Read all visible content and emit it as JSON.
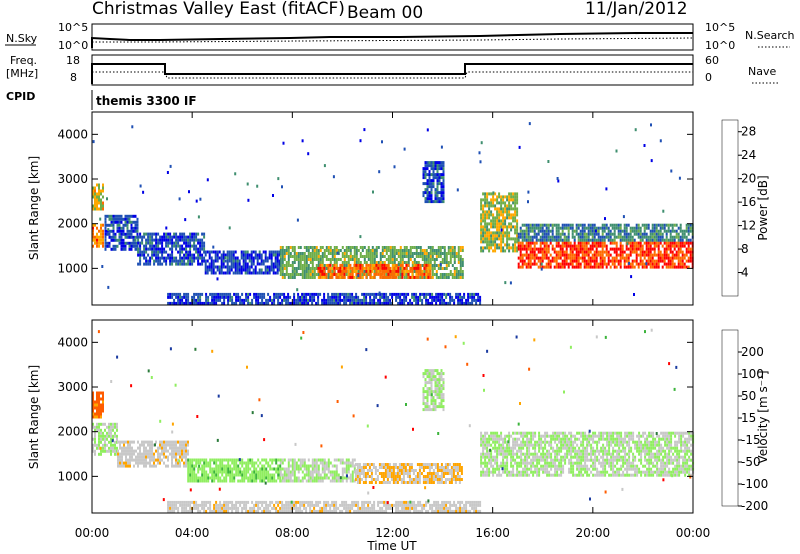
{
  "header": {
    "station": "Christmas Valley East (fitACF)",
    "beam": "Beam 00",
    "date": "11/Jan/2012"
  },
  "strips": {
    "nsky_label": "N.Sky",
    "nsky_ticks": [
      "10^5",
      "10^0"
    ],
    "nsearch_label": "N.Search",
    "nsearch_ticks": [
      "10^5",
      "10^0"
    ],
    "freq_label": "Freq.",
    "freq_unit": "[MHz]",
    "freq_ticks": [
      "18",
      "8"
    ],
    "nave_label": "Nave",
    "nave_ticks": [
      "60",
      "0"
    ],
    "cpid_label": "CPID",
    "cpid_value": "themis 3300 IF"
  },
  "chart_data": [
    {
      "type": "heatmap",
      "name": "power",
      "xlabel": "",
      "ylabel": "Slant Range [km]",
      "xlim": [
        0,
        24
      ],
      "ylim": [
        180,
        4500
      ],
      "y_ticks": [
        "1000",
        "2000",
        "3000",
        "4000"
      ],
      "colorbar": {
        "label": "Power [dB]",
        "ticks": [
          "4",
          "8",
          "12",
          "16",
          "20",
          "24",
          "28"
        ],
        "range": [
          0,
          30
        ],
        "colors": [
          "#0000e6",
          "#1f50b4",
          "#3f8f6f",
          "#6fae4a",
          "#ffa800",
          "#ff6a00",
          "#ff0000"
        ]
      },
      "echo_regions": [
        {
          "x": [
            0.0,
            0.4
          ],
          "y": [
            1500,
            2000
          ],
          "level": 22
        },
        {
          "x": [
            0.0,
            0.4
          ],
          "y": [
            2300,
            2900
          ],
          "level": 18
        },
        {
          "x": [
            0.5,
            1.8
          ],
          "y": [
            1400,
            2200
          ],
          "level": 6
        },
        {
          "x": [
            1.8,
            4.5
          ],
          "y": [
            1100,
            1800
          ],
          "level": 6
        },
        {
          "x": [
            4.5,
            7.5
          ],
          "y": [
            900,
            1400
          ],
          "level": 5
        },
        {
          "x": [
            7.5,
            14.8
          ],
          "y": [
            800,
            1500
          ],
          "level": 14
        },
        {
          "x": [
            9.0,
            13.5
          ],
          "y": [
            800,
            1100
          ],
          "level": 24
        },
        {
          "x": [
            13.2,
            14.0
          ],
          "y": [
            2500,
            3400
          ],
          "level": 6
        },
        {
          "x": [
            15.5,
            17.0
          ],
          "y": [
            1400,
            2700
          ],
          "level": 16
        },
        {
          "x": [
            17.0,
            24.0
          ],
          "y": [
            1000,
            1600
          ],
          "level": 26
        },
        {
          "x": [
            17.0,
            24.0
          ],
          "y": [
            1600,
            2000
          ],
          "level": 10
        },
        {
          "x": [
            3.0,
            15.5
          ],
          "y": [
            200,
            450
          ],
          "level": 5
        }
      ]
    },
    {
      "type": "heatmap",
      "name": "velocity",
      "xlabel": "Time UT",
      "ylabel": "Slant Range [km]",
      "xlim": [
        0,
        24
      ],
      "ylim": [
        180,
        4500
      ],
      "x_ticks": [
        "00:00",
        "04:00",
        "08:00",
        "12:00",
        "16:00",
        "20:00",
        "00:00"
      ],
      "y_ticks": [
        "1000",
        "2000",
        "3000",
        "4000"
      ],
      "colorbar": {
        "label": "Velocity [m s⁻¹]",
        "ticks": [
          "200",
          "100",
          "50",
          "15",
          "-15",
          "-50",
          "-100",
          "-200"
        ],
        "range": [
          -250,
          250
        ],
        "colors": [
          "#ff0000",
          "#ff5c00",
          "#ffa500",
          "#c8c8c8",
          "#90ee60",
          "#3cb43c",
          "#2a7a3a",
          "#1a3aa0"
        ]
      },
      "echo_regions": [
        {
          "x": [
            0.0,
            0.4
          ],
          "y": [
            2300,
            2900
          ],
          "level": -150
        },
        {
          "x": [
            0.0,
            1.0
          ],
          "y": [
            1500,
            2200
          ],
          "level": 0
        },
        {
          "x": [
            1.0,
            3.8
          ],
          "y": [
            1200,
            1800
          ],
          "level": -40
        },
        {
          "x": [
            3.8,
            7.5
          ],
          "y": [
            900,
            1400
          ],
          "level": 40
        },
        {
          "x": [
            7.5,
            10.5
          ],
          "y": [
            900,
            1400
          ],
          "level": 0
        },
        {
          "x": [
            10.5,
            14.8
          ],
          "y": [
            850,
            1300
          ],
          "level": -60
        },
        {
          "x": [
            13.2,
            14.0
          ],
          "y": [
            2500,
            3400
          ],
          "level": 0
        },
        {
          "x": [
            15.5,
            24.0
          ],
          "y": [
            1000,
            2000
          ],
          "level": 0
        },
        {
          "x": [
            3.0,
            15.5
          ],
          "y": [
            200,
            450
          ],
          "level": -40
        }
      ]
    }
  ]
}
